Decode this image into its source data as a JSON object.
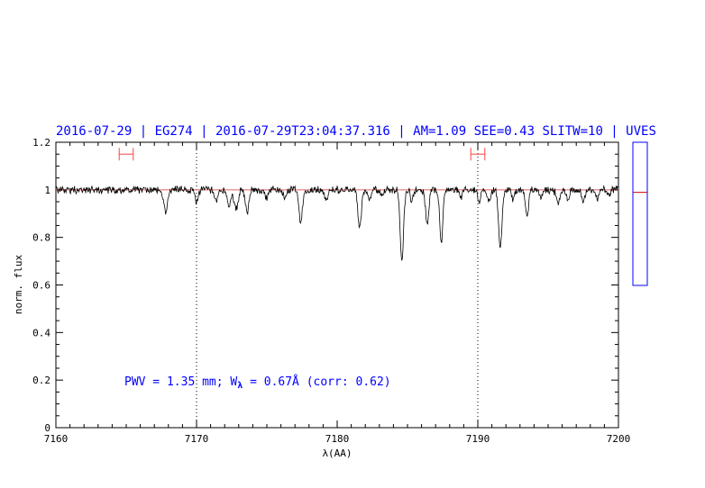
{
  "chart_data": {
    "type": "line",
    "title": "2016-07-29 | EG274 | 2016-07-29T23:04:37.316 | AM=1.09  SEE=0.43  SLITW=10 | UVES",
    "xlabel": "λ(AA)",
    "ylabel": "norm. flux",
    "xlim": [
      7160,
      7200
    ],
    "ylim": [
      0,
      1.2
    ],
    "x_ticks": [
      7160,
      7170,
      7180,
      7190,
      7200
    ],
    "x_tick_labels": [
      "7160",
      "7170",
      "7180",
      "7190",
      "7200"
    ],
    "y_ticks": [
      0,
      0.2,
      0.4,
      0.6,
      0.8,
      1.0,
      1.2
    ],
    "y_tick_labels": [
      "0",
      "0.2",
      "0.4",
      "0.6",
      "0.8",
      "1",
      "1.2"
    ],
    "vertical_dotted_lines": [
      7170,
      7190
    ],
    "continuum_level": 1.0,
    "intervals": [
      {
        "x_start": 7164.5,
        "x_end": 7165.5,
        "y": 1.15
      },
      {
        "x_start": 7189.5,
        "x_end": 7190.5,
        "y": 1.15
      }
    ],
    "absorption_lines": [
      {
        "x": 7167.8,
        "depth": 0.09,
        "width": 0.15
      },
      {
        "x": 7170.0,
        "depth": 0.05,
        "width": 0.12
      },
      {
        "x": 7171.4,
        "depth": 0.05,
        "width": 0.12
      },
      {
        "x": 7172.3,
        "depth": 0.07,
        "width": 0.12
      },
      {
        "x": 7172.8,
        "depth": 0.08,
        "width": 0.14
      },
      {
        "x": 7173.6,
        "depth": 0.1,
        "width": 0.12
      },
      {
        "x": 7175.0,
        "depth": 0.03,
        "width": 0.12
      },
      {
        "x": 7176.3,
        "depth": 0.04,
        "width": 0.12
      },
      {
        "x": 7177.4,
        "depth": 0.13,
        "width": 0.12
      },
      {
        "x": 7179.2,
        "depth": 0.04,
        "width": 0.12
      },
      {
        "x": 7181.6,
        "depth": 0.16,
        "width": 0.12
      },
      {
        "x": 7182.3,
        "depth": 0.04,
        "width": 0.1
      },
      {
        "x": 7183.2,
        "depth": 0.03,
        "width": 0.1
      },
      {
        "x": 7184.6,
        "depth": 0.29,
        "width": 0.12
      },
      {
        "x": 7185.3,
        "depth": 0.05,
        "width": 0.1
      },
      {
        "x": 7186.4,
        "depth": 0.14,
        "width": 0.12
      },
      {
        "x": 7187.4,
        "depth": 0.22,
        "width": 0.11
      },
      {
        "x": 7188.8,
        "depth": 0.03,
        "width": 0.1
      },
      {
        "x": 7190.1,
        "depth": 0.05,
        "width": 0.1
      },
      {
        "x": 7190.8,
        "depth": 0.05,
        "width": 0.12
      },
      {
        "x": 7191.6,
        "depth": 0.24,
        "width": 0.12
      },
      {
        "x": 7192.5,
        "depth": 0.04,
        "width": 0.1
      },
      {
        "x": 7193.5,
        "depth": 0.1,
        "width": 0.12
      },
      {
        "x": 7194.5,
        "depth": 0.03,
        "width": 0.1
      },
      {
        "x": 7195.7,
        "depth": 0.06,
        "width": 0.12
      },
      {
        "x": 7196.4,
        "depth": 0.04,
        "width": 0.1
      },
      {
        "x": 7197.5,
        "depth": 0.05,
        "width": 0.12
      },
      {
        "x": 7198.5,
        "depth": 0.04,
        "width": 0.1
      },
      {
        "x": 7199.3,
        "depth": 0.03,
        "width": 0.1
      }
    ],
    "annotation": {
      "pwv_text": "PWV = 1.35 mm; W",
      "subscript": "λ",
      "equals_text": " = 0.67Å (corr: 0.62)"
    },
    "side_indicator": {
      "level": 0.65
    },
    "colors": {
      "spectrum": "#000000",
      "continuum": "#e06060",
      "interval": "#ff4040",
      "title": "#0000ff",
      "side_box": "#0000ff",
      "side_mark": "#cc0000"
    }
  }
}
